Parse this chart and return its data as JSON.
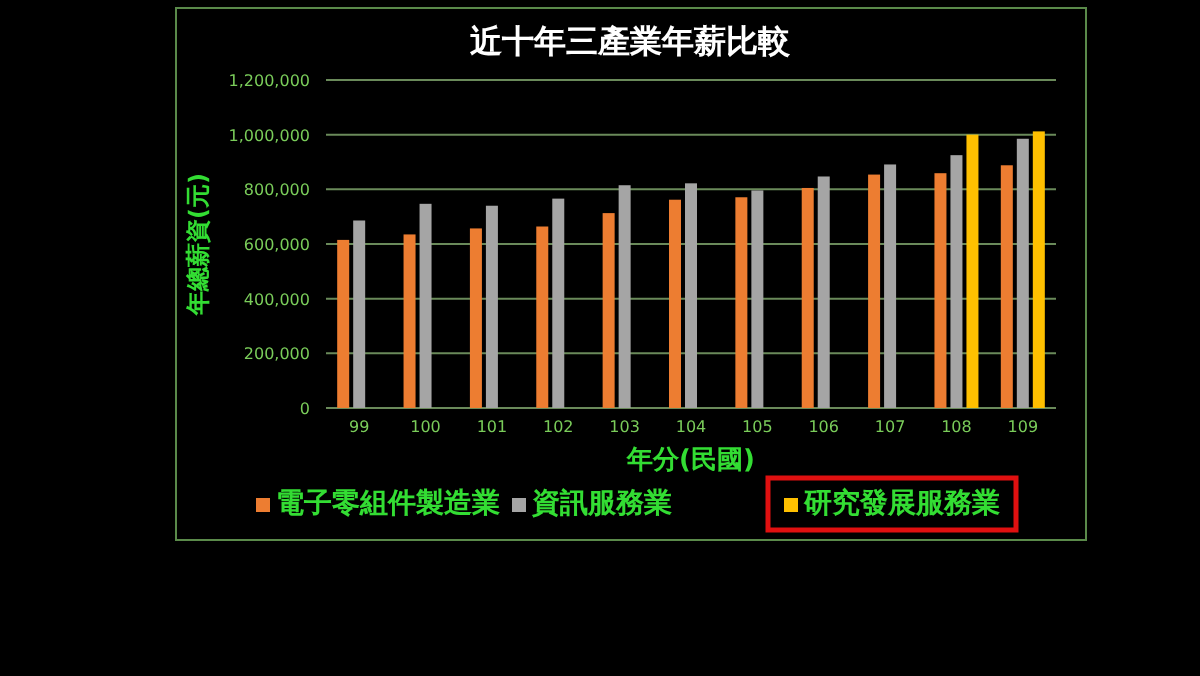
{
  "chart_data": {
    "type": "bar",
    "title": "近十年三產業年薪比較",
    "xlabel": "年分(民國)",
    "ylabel": "年總薪資(元)",
    "categories": [
      "99",
      "100",
      "101",
      "102",
      "103",
      "104",
      "105",
      "106",
      "107",
      "108",
      "109"
    ],
    "series": [
      {
        "name": "電子零組件製造業",
        "color": "#ed7d31",
        "values": [
          615000,
          635000,
          657000,
          664000,
          713000,
          762000,
          771000,
          805000,
          854000,
          859000,
          888000
        ]
      },
      {
        "name": "資訊服務業",
        "color": "#a5a5a5",
        "values": [
          686000,
          747000,
          740000,
          766000,
          815000,
          822000,
          796000,
          847000,
          891000,
          925000,
          985000
        ]
      },
      {
        "name": "研究發展服務業",
        "color": "#ffc000",
        "values": [
          null,
          null,
          null,
          null,
          null,
          null,
          null,
          null,
          null,
          1000000,
          1012000
        ]
      }
    ],
    "ylim": [
      0,
      1200000
    ],
    "yticks": [
      {
        "value": 0,
        "label": "0"
      },
      {
        "value": 200000,
        "label": "200,000"
      },
      {
        "value": 400000,
        "label": "400,000"
      },
      {
        "value": 600000,
        "label": "600,000"
      },
      {
        "value": 800000,
        "label": "800,000"
      },
      {
        "value": 1000000,
        "label": "1,000,000"
      },
      {
        "value": 1200000,
        "label": "1,200,000"
      }
    ],
    "grid": "y",
    "legend": "bottom"
  }
}
